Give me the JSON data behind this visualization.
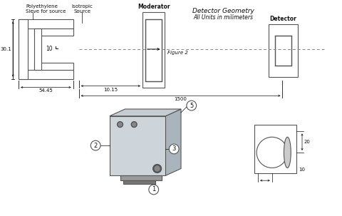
{
  "title": "Detector Geometry",
  "subtitle": "All Units in milimeters",
  "line_color": "#555555",
  "text_color": "#111111",
  "labels": {
    "poly": "Polyethylene\nSieve for source",
    "iso": "Isotropic\nSource",
    "moderator": "Moderator",
    "detector": "Detector",
    "figure2": "Figure 2",
    "dim_30": "30.1",
    "dim_10": "10",
    "dim_54": "54.45",
    "dim_1015": "10.15",
    "dim_1500": "1500",
    "det_dim_20": "20",
    "det_dim_10": "10"
  }
}
